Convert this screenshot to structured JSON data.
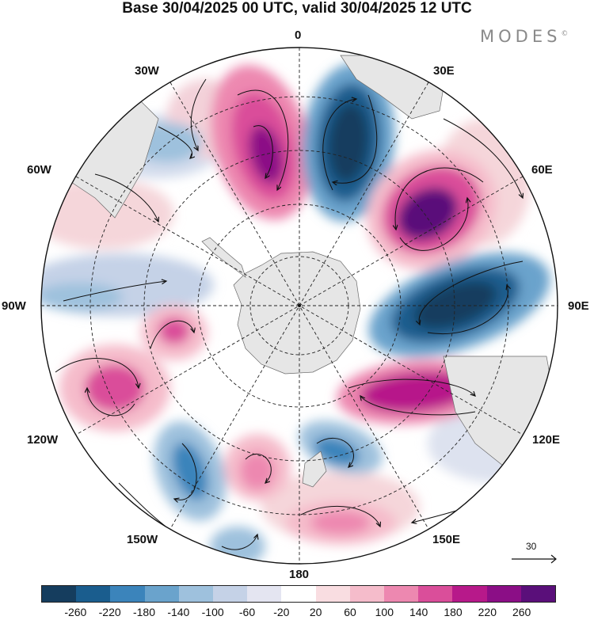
{
  "title": "Base 30/04/2025 00 UTC, valid 30/04/2025 12 UTC",
  "brand": "MODES",
  "brand_mark": "©",
  "map": {
    "projection": "south-polar-stereographic",
    "longitude_labels": {
      "top": "0",
      "top_right": "30E",
      "right_upper": "60E",
      "right": "90E",
      "right_lower": "120E",
      "bottom_right": "150E",
      "bottom": "180",
      "bottom_left": "150W",
      "left_lower": "120W",
      "left": "90W",
      "left_upper": "60W",
      "top_left": "30W"
    },
    "reference_vector_label": "30",
    "colors": {
      "land": "#e6e6e6",
      "graticule": "#222222",
      "coast": "#555555",
      "streamline": "#111111"
    }
  },
  "colorbar": {
    "colors": [
      "#153d5e",
      "#1a5d8e",
      "#3b84bb",
      "#6aa3cc",
      "#9ec1dd",
      "#c5d2e7",
      "#e4e5f1",
      "#ffffff",
      "#f9dde1",
      "#f5bccb",
      "#ed88b0",
      "#da4e9a",
      "#b7198a",
      "#8b0e86",
      "#5a0f7a"
    ],
    "tick_labels": [
      "-260",
      "-220",
      "-180",
      "-140",
      "-100",
      "-60",
      "-20",
      "20",
      "60",
      "100",
      "140",
      "180",
      "220",
      "260"
    ]
  }
}
